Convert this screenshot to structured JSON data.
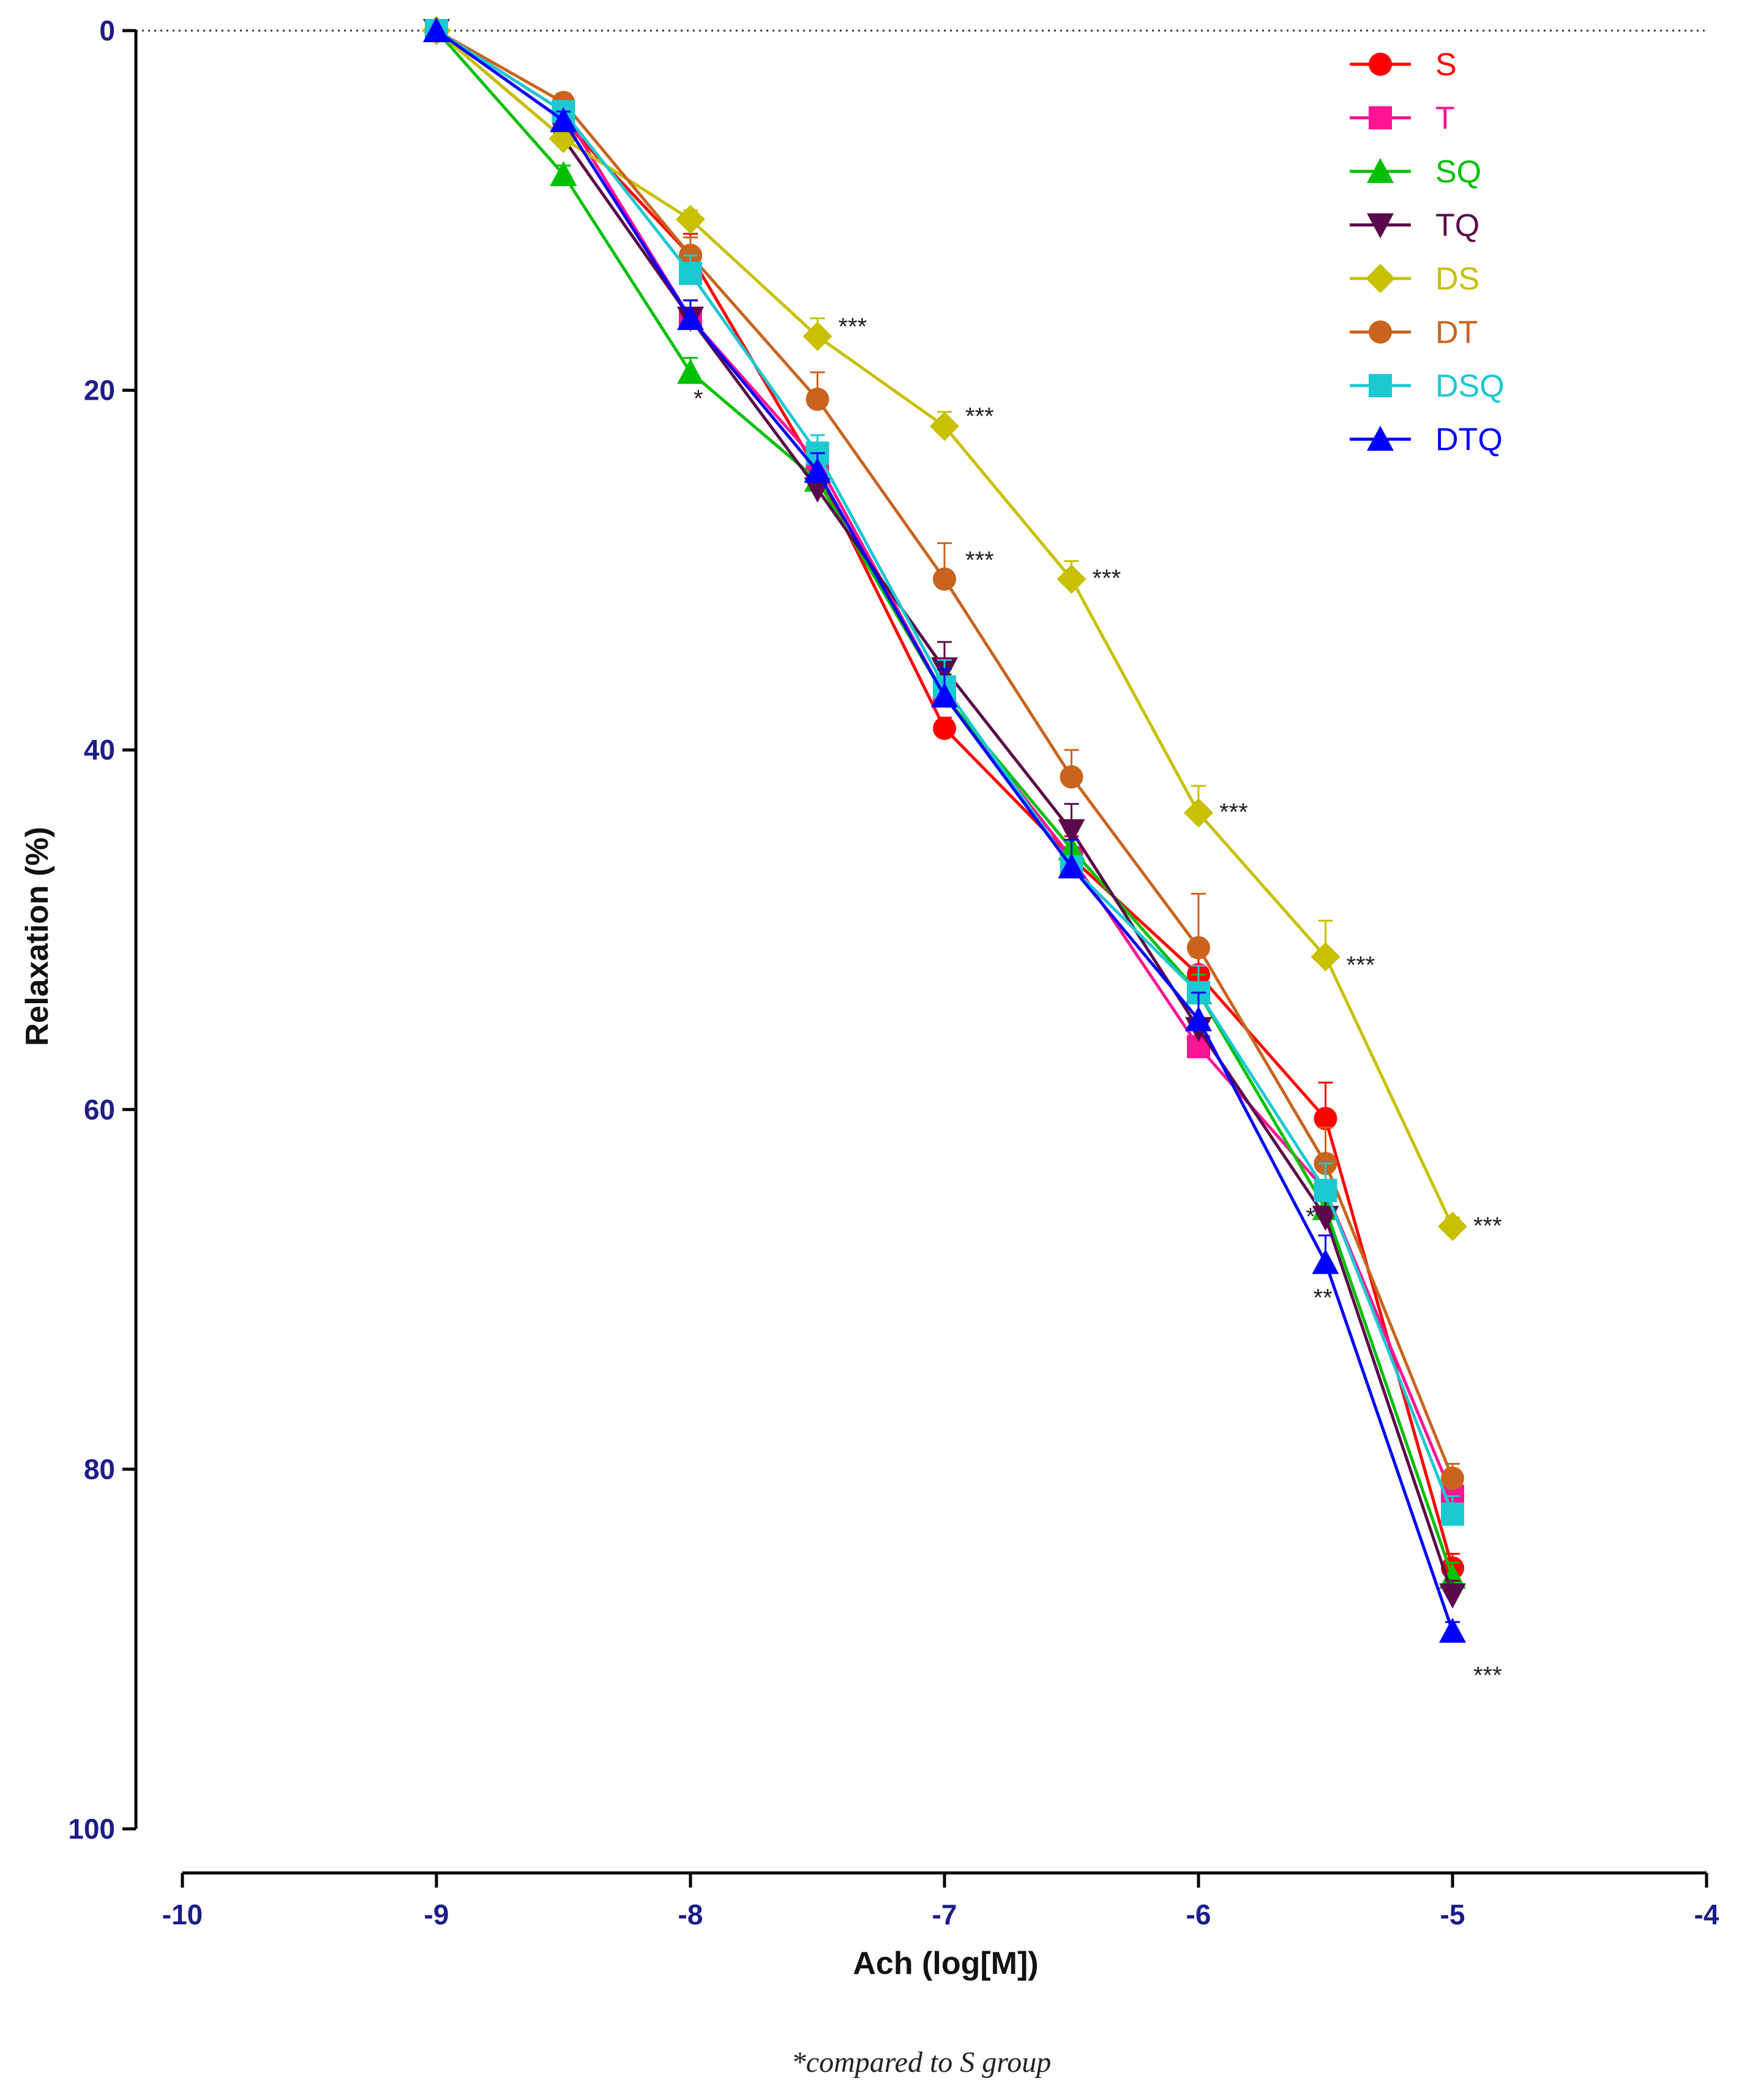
{
  "chart_data": {
    "type": "line",
    "title": "",
    "xlabel": "Ach (log[M])",
    "ylabel": "Relaxation (%)",
    "xlim": [
      -10,
      -4
    ],
    "ylim": [
      0,
      100
    ],
    "y_inverted": true,
    "x_ticks": [
      -10,
      -9,
      -8,
      -7,
      -6,
      -5,
      -4
    ],
    "x_tick_labels": [
      "-10",
      "-9",
      "-8",
      "-7",
      "-6",
      "-5",
      "-4"
    ],
    "y_ticks": [
      0,
      20,
      40,
      60,
      80,
      100
    ],
    "y_tick_labels": [
      "0",
      "20",
      "40",
      "60",
      "80",
      "100"
    ],
    "x": [
      -9,
      -8.5,
      -8,
      -7.5,
      -7,
      -6.5,
      -6,
      -5.5,
      -5
    ],
    "legend_position": "top-right",
    "series": [
      {
        "name": "S",
        "color": "#ff0000",
        "marker": "circle",
        "values": [
          0,
          5,
          12.5,
          24.5,
          38.8,
          46,
          52.5,
          60.5,
          85.5
        ],
        "errors": [
          0,
          0.5,
          1.2,
          1.0,
          0.6,
          1.2,
          1.0,
          2.0,
          0.8
        ]
      },
      {
        "name": "T",
        "color": "#ff1493",
        "marker": "square",
        "values": [
          0,
          4.5,
          16,
          24,
          37,
          46,
          56.5,
          64.5,
          81.5
        ],
        "errors": [
          0,
          0.5,
          1.0,
          1.0,
          1.5,
          1.5,
          1.0,
          2.0,
          1.0
        ]
      },
      {
        "name": "SQ",
        "color": "#00c000",
        "marker": "triangle-up",
        "values": [
          0,
          8,
          19,
          25,
          37,
          45.5,
          53.5,
          65.5,
          86
        ],
        "errors": [
          0,
          0.5,
          0.8,
          1.0,
          1.2,
          1.2,
          1.0,
          1.5,
          0.8
        ]
      },
      {
        "name": "TQ",
        "color": "#5a0a4a",
        "marker": "triangle-down",
        "values": [
          0,
          6,
          16,
          25.5,
          35.5,
          44.5,
          55.5,
          66,
          87
        ],
        "errors": [
          0,
          0.5,
          1.0,
          1.0,
          1.5,
          1.5,
          1.5,
          1.5,
          0.8
        ]
      },
      {
        "name": "DS",
        "color": "#c8c000",
        "marker": "diamond",
        "values": [
          0,
          6,
          10.5,
          17,
          22,
          30.5,
          43.5,
          51.5,
          66.5
        ],
        "errors": [
          0,
          0.5,
          0.5,
          1.0,
          0.8,
          1.0,
          1.5,
          2.0,
          0.5
        ]
      },
      {
        "name": "DT",
        "color": "#c8641e",
        "marker": "circle",
        "values": [
          0,
          4,
          12.5,
          20.5,
          30.5,
          41.5,
          51,
          63,
          80.5
        ],
        "errors": [
          0,
          0.5,
          1.0,
          1.5,
          2.0,
          1.5,
          3.0,
          2.0,
          0.8
        ]
      },
      {
        "name": "DSQ",
        "color": "#1cc8d2",
        "marker": "square",
        "values": [
          0,
          4.5,
          13.5,
          23.5,
          36.5,
          46.5,
          53.5,
          64.5,
          82.5
        ],
        "errors": [
          0,
          0.5,
          1.0,
          1.0,
          1.5,
          1.5,
          1.5,
          1.5,
          1.0
        ]
      },
      {
        "name": "DTQ",
        "color": "#0000ff",
        "marker": "triangle-up",
        "values": [
          0,
          5,
          16,
          24.5,
          37,
          46.5,
          55,
          68.5,
          89
        ],
        "errors": [
          0,
          0.5,
          1.0,
          1.0,
          1.5,
          1.5,
          1.5,
          1.5,
          0.5
        ]
      }
    ],
    "annotations": [
      {
        "text": "***",
        "x": -7.5,
        "y": 16.5,
        "color": "#c8c000"
      },
      {
        "text": "***",
        "x": -7.0,
        "y": 21.5,
        "color": "#c8c000"
      },
      {
        "text": "***",
        "x": -6.5,
        "y": 30.5,
        "color": "#c8c000"
      },
      {
        "text": "***",
        "x": -6.0,
        "y": 43.5,
        "color": "#c8c000"
      },
      {
        "text": "***",
        "x": -5.5,
        "y": 52.0,
        "color": "#c8c000"
      },
      {
        "text": "***",
        "x": -5.0,
        "y": 66.5,
        "color": "#c8c000"
      },
      {
        "text": "***",
        "x": -7.0,
        "y": 29.5,
        "color": "#c8641e"
      },
      {
        "text": "*",
        "x": -8.07,
        "y": 20.5,
        "color": "#00c000"
      },
      {
        "text": "*",
        "x": -5.66,
        "y": 66.0,
        "color": "#00c000"
      },
      {
        "text": "**",
        "x": -5.63,
        "y": 70.5,
        "color": "#0000ff"
      },
      {
        "text": "***",
        "x": -5.0,
        "y": 91.5,
        "color": "#0000ff"
      }
    ],
    "footnote": "*compared to S group"
  }
}
